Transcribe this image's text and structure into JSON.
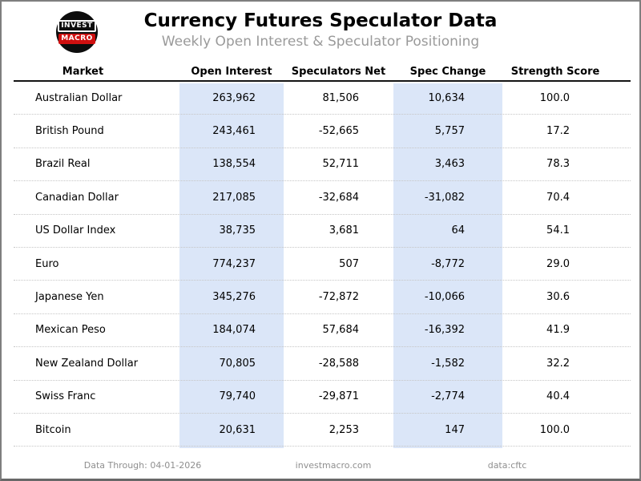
{
  "header": {
    "title": "Currency Futures Speculator Data",
    "subtitle": "Weekly Open Interest & Speculator Positioning",
    "logo": {
      "line1": "INVEST",
      "line2": "MACRO"
    }
  },
  "table": {
    "columns": [
      "Market",
      "Open Interest",
      "Speculators Net",
      "Spec Change",
      "Strength Score"
    ],
    "rows": [
      {
        "market": "Australian Dollar",
        "open_interest": "263,962",
        "speculators_net": "81,506",
        "spec_change": "10,634",
        "strength_score": "100.0"
      },
      {
        "market": "British Pound",
        "open_interest": "243,461",
        "speculators_net": "-52,665",
        "spec_change": "5,757",
        "strength_score": "17.2"
      },
      {
        "market": "Brazil Real",
        "open_interest": "138,554",
        "speculators_net": "52,711",
        "spec_change": "3,463",
        "strength_score": "78.3"
      },
      {
        "market": "Canadian Dollar",
        "open_interest": "217,085",
        "speculators_net": "-32,684",
        "spec_change": "-31,082",
        "strength_score": "70.4"
      },
      {
        "market": "US Dollar Index",
        "open_interest": "38,735",
        "speculators_net": "3,681",
        "spec_change": "64",
        "strength_score": "54.1"
      },
      {
        "market": "Euro",
        "open_interest": "774,237",
        "speculators_net": "507",
        "spec_change": "-8,772",
        "strength_score": "29.0"
      },
      {
        "market": "Japanese Yen",
        "open_interest": "345,276",
        "speculators_net": "-72,872",
        "spec_change": "-10,066",
        "strength_score": "30.6"
      },
      {
        "market": "Mexican Peso",
        "open_interest": "184,074",
        "speculators_net": "57,684",
        "spec_change": "-16,392",
        "strength_score": "41.9"
      },
      {
        "market": "New Zealand Dollar",
        "open_interest": "70,805",
        "speculators_net": "-28,588",
        "spec_change": "-1,582",
        "strength_score": "32.2"
      },
      {
        "market": "Swiss Franc",
        "open_interest": "79,740",
        "speculators_net": "-29,871",
        "spec_change": "-2,774",
        "strength_score": "40.4"
      },
      {
        "market": "Bitcoin",
        "open_interest": "20,631",
        "speculators_net": "2,253",
        "spec_change": "147",
        "strength_score": "100.0"
      }
    ]
  },
  "footer": {
    "data_through": "Data Through: 04-01-2026",
    "website": "investmacro.com",
    "source": "data:cftc"
  },
  "colors": {
    "highlight_column": "#dbe6f8",
    "header_rule": "#141414",
    "row_divider": "#c6c6c6",
    "subtitle_gray": "#9a9a9a",
    "footer_gray": "#8f8f8f",
    "logo_red": "#cf1010",
    "logo_black": "#0d0d0d",
    "page_border": "#7f7f7f"
  },
  "chart_data": {
    "type": "table",
    "title": "Currency Futures Speculator Data",
    "subtitle": "Weekly Open Interest & Speculator Positioning",
    "columns": [
      "Market",
      "Open Interest",
      "Speculators Net",
      "Spec Change",
      "Strength Score"
    ],
    "highlighted_columns": [
      "Open Interest",
      "Spec Change"
    ],
    "rows": [
      [
        "Australian Dollar",
        263962,
        81506,
        10634,
        100.0
      ],
      [
        "British Pound",
        243461,
        -52665,
        5757,
        17.2
      ],
      [
        "Brazil Real",
        138554,
        52711,
        3463,
        78.3
      ],
      [
        "Canadian Dollar",
        217085,
        -32684,
        -31082,
        70.4
      ],
      [
        "US Dollar Index",
        38735,
        3681,
        64,
        54.1
      ],
      [
        "Euro",
        774237,
        507,
        -8772,
        29.0
      ],
      [
        "Japanese Yen",
        345276,
        -72872,
        -10066,
        30.6
      ],
      [
        "Mexican Peso",
        184074,
        57684,
        -16392,
        41.9
      ],
      [
        "New Zealand Dollar",
        70805,
        -28588,
        -1582,
        32.2
      ],
      [
        "Swiss Franc",
        79740,
        -29871,
        -2774,
        40.4
      ],
      [
        "Bitcoin",
        20631,
        2253,
        147,
        100.0
      ]
    ],
    "footnotes": [
      "Data Through: 04-01-2026",
      "investmacro.com",
      "data:cftc"
    ]
  }
}
